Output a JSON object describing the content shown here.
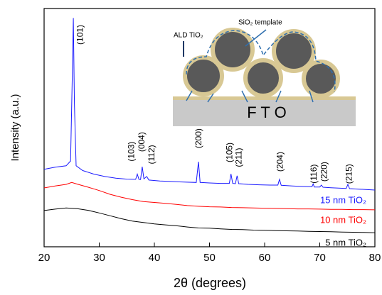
{
  "chart_data": {
    "type": "line",
    "xlabel": "2θ (degrees)",
    "ylabel": "Intensity (a.u.)",
    "xlim": [
      20,
      80
    ],
    "ylim": [
      0,
      100
    ],
    "xticks": [
      20,
      30,
      40,
      50,
      60,
      70,
      80
    ],
    "series": [
      {
        "name": "15 nm TiO₂",
        "color": "#1a1aff",
        "x": [
          20,
          22,
          24,
          24.8,
          25.1,
          25.3,
          25.5,
          25.8,
          27,
          29,
          31,
          33,
          35,
          36.6,
          36.9,
          37.2,
          37.5,
          37.8,
          38.1,
          38.6,
          39,
          41,
          43,
          45,
          47.6,
          48.0,
          48.3,
          50,
          52,
          53.6,
          53.9,
          54.2,
          54.7,
          55.0,
          55.3,
          57,
          59,
          61,
          62.4,
          62.7,
          63.0,
          65,
          67,
          68.6,
          68.8,
          69.0,
          70.0,
          70.3,
          70.6,
          72,
          74.8,
          75.1,
          75.4,
          77,
          80
        ],
        "values": [
          32.5,
          33.4,
          34.0,
          36,
          70,
          96,
          60,
          34,
          32,
          30.5,
          29.5,
          28.8,
          28.4,
          28.3,
          30.5,
          28.3,
          28.2,
          33.6,
          28.5,
          29.5,
          28,
          27.6,
          27.4,
          27.2,
          27.0,
          35.7,
          27.0,
          26.8,
          26.6,
          26.6,
          30.6,
          26.6,
          26.5,
          29.8,
          26.5,
          26.2,
          26.0,
          25.9,
          25.9,
          28.3,
          25.8,
          25.5,
          25.3,
          25.2,
          26.4,
          25.1,
          25.1,
          25.9,
          25.0,
          24.8,
          24.5,
          26.2,
          24.4,
          24.2,
          23.8
        ]
      },
      {
        "name": "10 nm TiO₂",
        "color": "#ff0000",
        "x": [
          20,
          22,
          24,
          25,
          26,
          28,
          30,
          32,
          34,
          36,
          38,
          40,
          42,
          44,
          46,
          48,
          50,
          52,
          54,
          56,
          58,
          60,
          62,
          64,
          66,
          68,
          70,
          72,
          74,
          76,
          78,
          80
        ],
        "values": [
          24.7,
          25.5,
          26.2,
          27.0,
          26.3,
          25.0,
          23.6,
          22.0,
          20.8,
          19.8,
          19.0,
          18.6,
          18.2,
          17.8,
          17.3,
          17.0,
          16.8,
          16.7,
          16.5,
          16.4,
          16.3,
          16.2,
          16.1,
          16.0,
          15.9,
          15.9,
          15.8,
          15.7,
          15.7,
          15.6,
          15.6,
          15.5
        ]
      },
      {
        "name": "5 nm TiO₂",
        "color": "#000000",
        "x": [
          20,
          22,
          24,
          26,
          28,
          30,
          32,
          34,
          36,
          38,
          40,
          42,
          44,
          46,
          48,
          50,
          52,
          54,
          56,
          58,
          60,
          62,
          64,
          66,
          68,
          70,
          72,
          74,
          76,
          78,
          80
        ],
        "values": [
          15.2,
          15.8,
          16.3,
          16.0,
          15.3,
          14.2,
          13.0,
          11.8,
          10.8,
          10.2,
          9.6,
          9.2,
          8.8,
          8.3,
          7.9,
          7.8,
          7.5,
          7.3,
          7.2,
          7.0,
          6.9,
          6.8,
          6.7,
          6.6,
          6.5,
          6.4,
          6.3,
          6.2,
          6.1,
          6.0,
          5.9
        ]
      }
    ],
    "annotations": [
      {
        "text": "(101)",
        "x": 26.6,
        "y": 89
      },
      {
        "text": "(103)",
        "x": 35.9,
        "y": 40
      },
      {
        "text": "(004)",
        "x": 37.8,
        "y": 44
      },
      {
        "text": "(112)",
        "x": 39.6,
        "y": 38.7
      },
      {
        "text": "(200)",
        "x": 48.1,
        "y": 45.5
      },
      {
        "text": "(105)",
        "x": 53.7,
        "y": 39.6
      },
      {
        "text": "(211)",
        "x": 55.4,
        "y": 37.5
      },
      {
        "text": "(204)",
        "x": 62.9,
        "y": 35.7
      },
      {
        "text": "(116)",
        "x": 69.0,
        "y": 30.6
      },
      {
        "text": "(220)",
        "x": 70.9,
        "y": 31.5
      },
      {
        "text": "(215)",
        "x": 75.4,
        "y": 30.6
      }
    ]
  },
  "inset": {
    "ald_label": "ALD TiO₂",
    "template_label": "SiO₂ template",
    "substrate_label": "F T O"
  }
}
